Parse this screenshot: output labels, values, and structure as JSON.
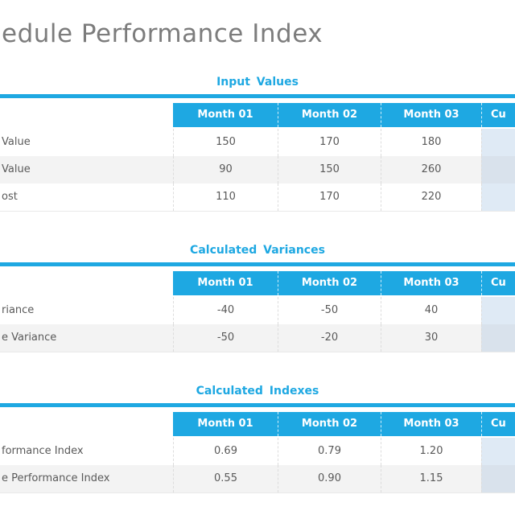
{
  "page_title": "edule Performance Index",
  "colors": {
    "accent": "#1EA8E2",
    "title_text": "#7C7C7C",
    "body_text": "#595959",
    "stripe": "#F3F3F3",
    "cumulative_fill": "#DFEAF5",
    "cumulative_fill_striped": "#D9E2EC"
  },
  "sections": [
    {
      "title": "Input Values",
      "columns": [
        "Month 01",
        "Month 02",
        "Month 03",
        "Cu"
      ],
      "rows": [
        {
          "label": "Value",
          "values": [
            "150",
            "170",
            "180"
          ]
        },
        {
          "label": "Value",
          "values": [
            "90",
            "150",
            "260"
          ]
        },
        {
          "label": "ost",
          "values": [
            "110",
            "170",
            "220"
          ]
        }
      ]
    },
    {
      "title": "Calculated Variances",
      "columns": [
        "Month 01",
        "Month 02",
        "Month 03",
        "Cu"
      ],
      "rows": [
        {
          "label": "riance",
          "values": [
            "-40",
            "-50",
            "40"
          ]
        },
        {
          "label": "e Variance",
          "values": [
            "-50",
            "-20",
            "30"
          ]
        }
      ]
    },
    {
      "title": "Calculated Indexes",
      "columns": [
        "Month 01",
        "Month 02",
        "Month 03",
        "Cu"
      ],
      "rows": [
        {
          "label": "formance Index",
          "values": [
            "0.69",
            "0.79",
            "1.20"
          ]
        },
        {
          "label": "e Performance Index",
          "values": [
            "0.55",
            "0.90",
            "1.15"
          ]
        }
      ]
    }
  ]
}
